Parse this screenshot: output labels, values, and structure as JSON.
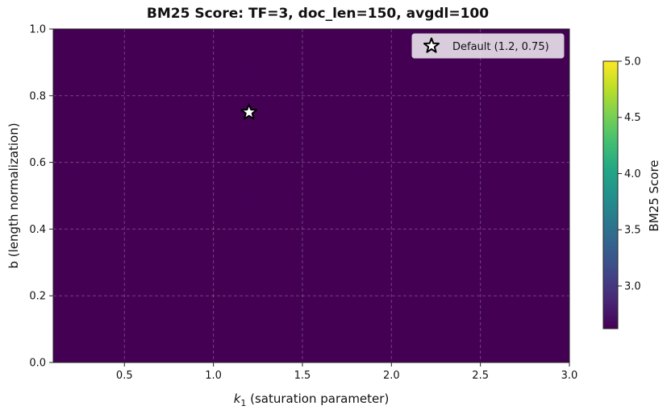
{
  "chart_data": {
    "type": "heatmap",
    "title": "BM25 Score: TF=3, doc_len=150, avgdl=100",
    "xlabel_main": "k",
    "xlabel_sub": "1",
    "xlabel_rest": " (saturation parameter)",
    "ylabel": "b (length normalization)",
    "xlim": [
      0.1,
      3.0
    ],
    "ylim": [
      0.0,
      1.0
    ],
    "x_ticks": [
      "0.5",
      "1.0",
      "1.5",
      "2.0",
      "2.5",
      "3.0"
    ],
    "x_tick_values": [
      0.5,
      1.0,
      1.5,
      2.0,
      2.5,
      3.0
    ],
    "y_ticks": [
      "0.0",
      "0.2",
      "0.4",
      "0.6",
      "0.8",
      "1.0"
    ],
    "y_tick_values": [
      0.0,
      0.2,
      0.4,
      0.6,
      0.8,
      1.0
    ],
    "grid": true,
    "params": {
      "tf": 3,
      "doc_len": 150,
      "avgdl": 100
    },
    "score_range": [
      2.62,
      4.98
    ],
    "colormap": "viridis",
    "contour_levels": [
      "2.7",
      "3.0",
      "3.3",
      "3.6",
      "3.9",
      "4.2",
      "4.5",
      "4.8"
    ],
    "marker": {
      "label": "Default (1.2, 0.75)",
      "x": 1.2,
      "y": 0.75
    },
    "legend_position": "top-right",
    "colorbar": {
      "label": "BM25 Score",
      "min": 2.62,
      "max": 5.0,
      "ticks": [
        "3.0",
        "3.5",
        "4.0",
        "4.5",
        "5.0"
      ],
      "tick_values": [
        3.0,
        3.5,
        4.0,
        4.5,
        5.0
      ]
    }
  }
}
